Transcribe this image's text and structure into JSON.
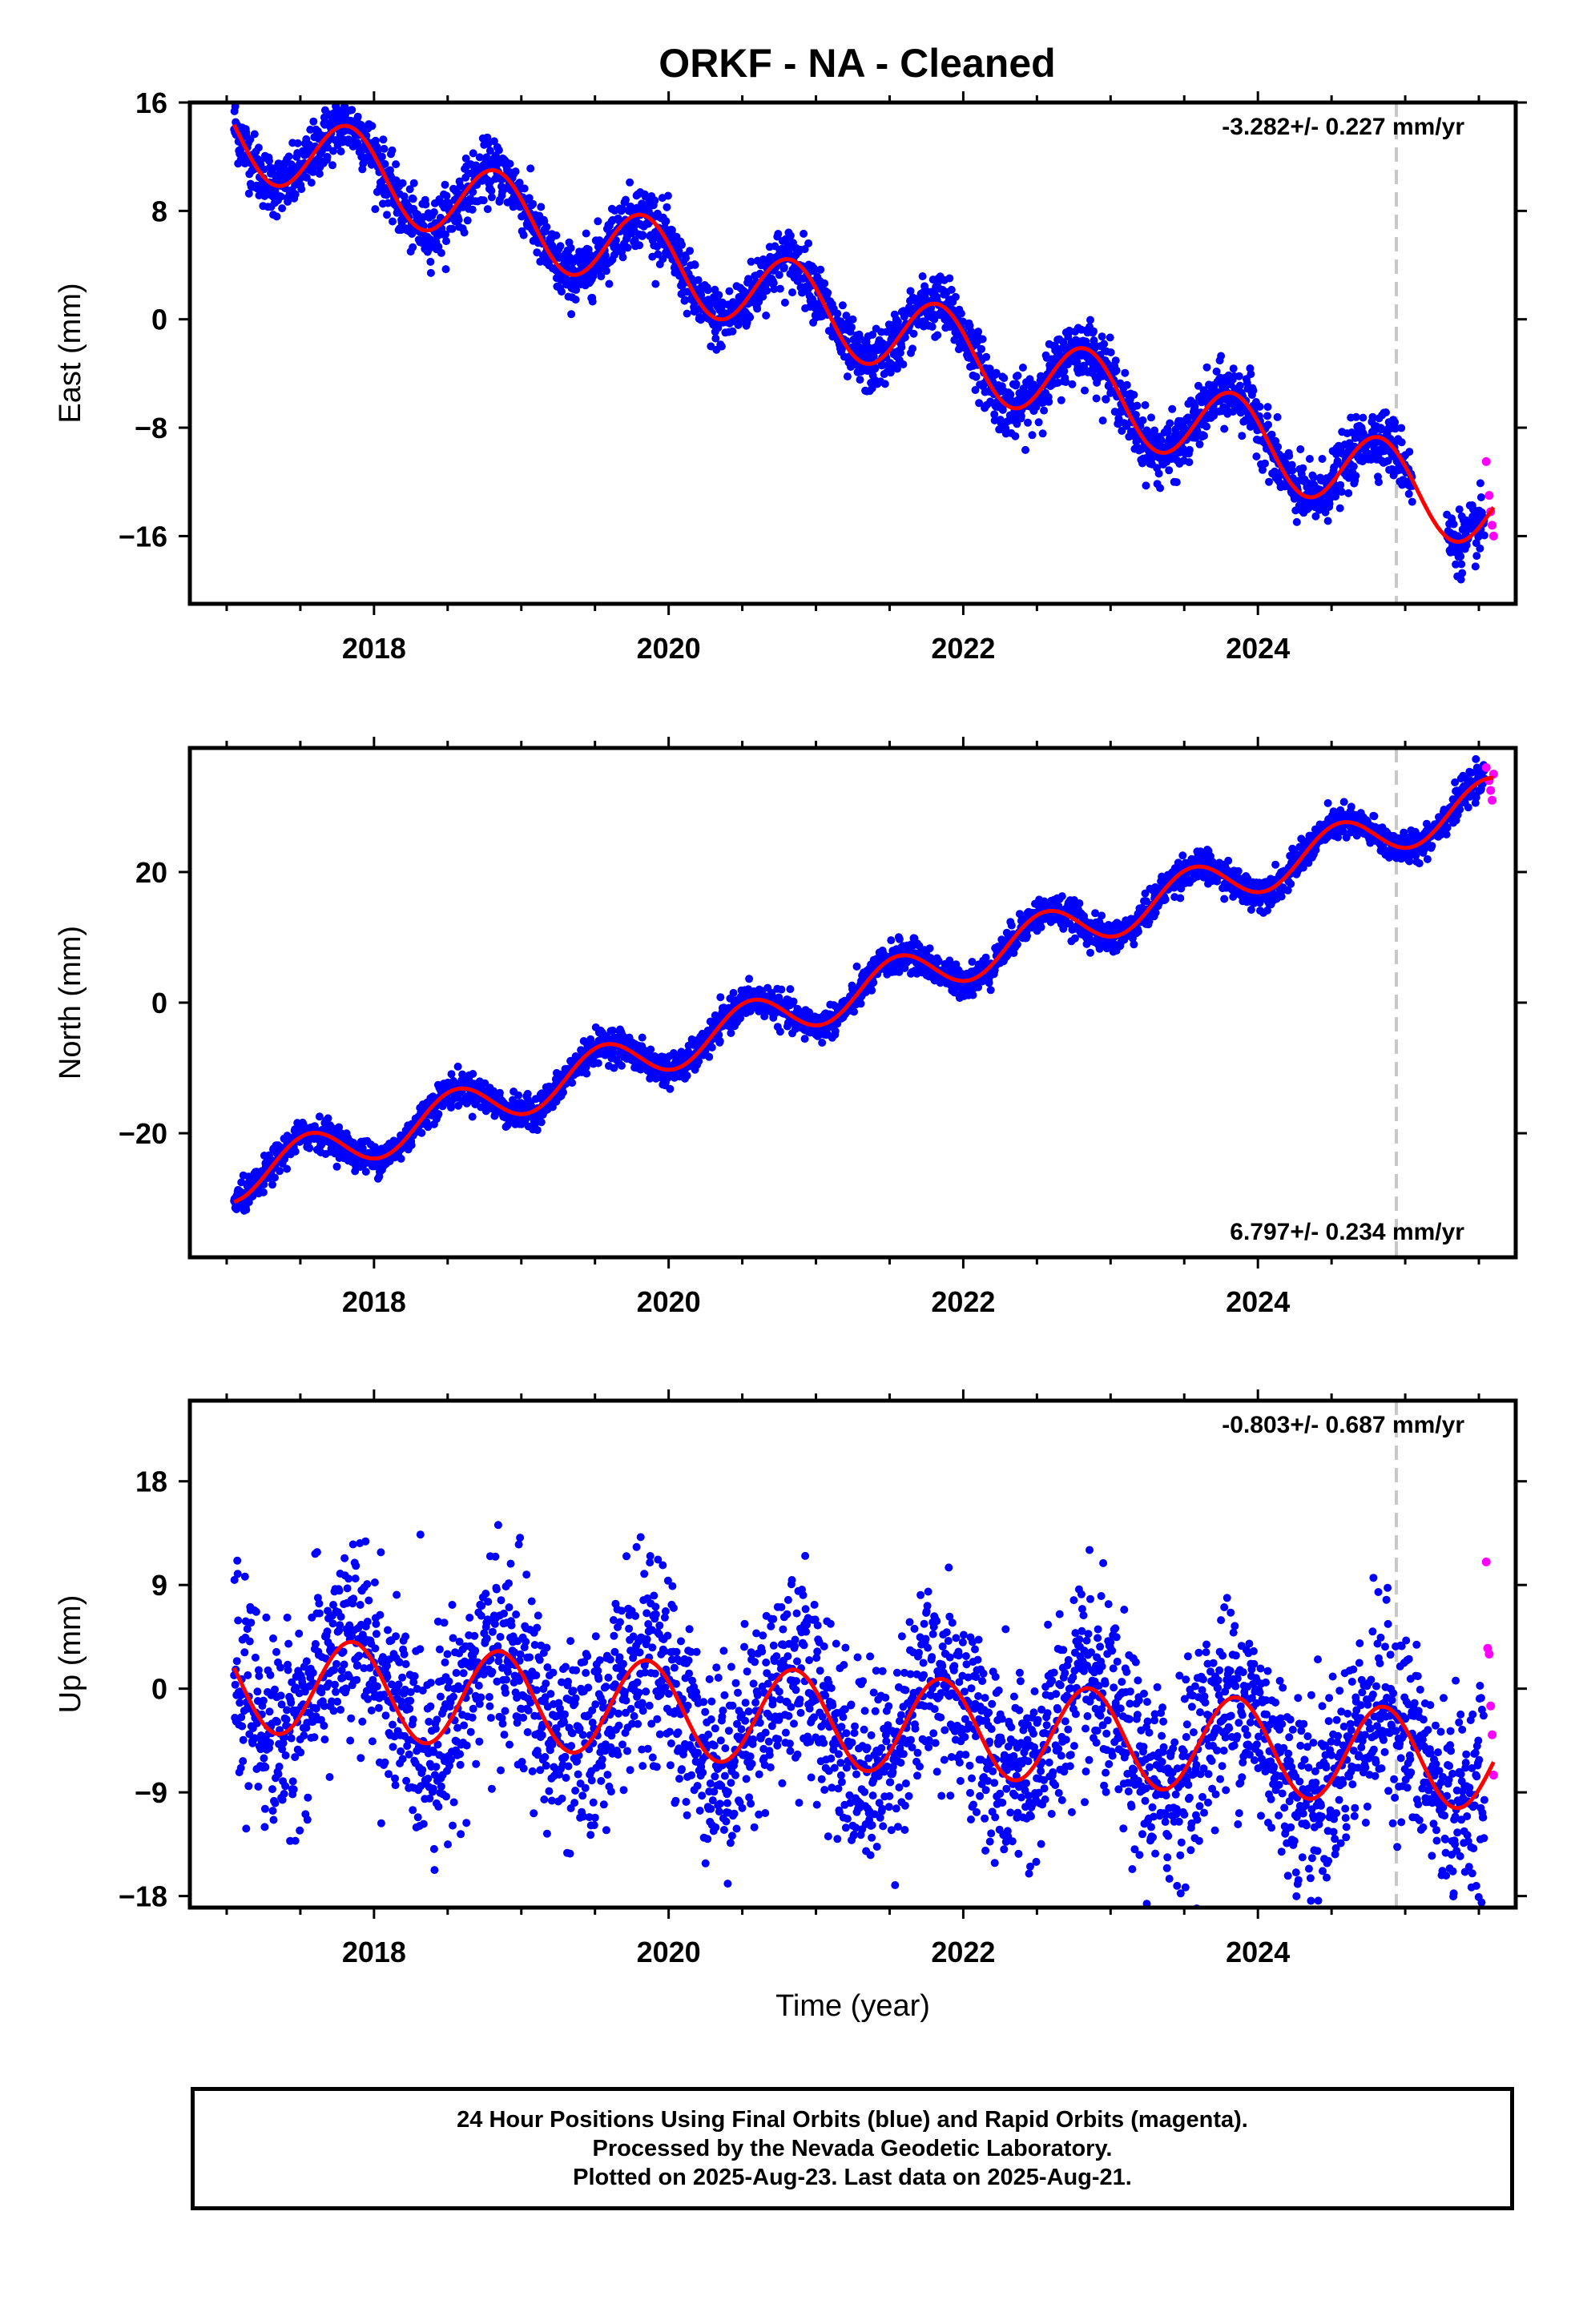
{
  "title": "ORKF  - NA - Cleaned",
  "colors": {
    "final": "#0000ff",
    "rapid": "#ff00ff",
    "model": "#ff0000",
    "rapid_start": "#c8c8c8"
  },
  "chart_data": [
    {
      "type": "scatter",
      "component": "east",
      "ylabel": "East (mm)",
      "xlabel": "",
      "xlim": [
        2016.75,
        2025.75
      ],
      "ylim": [
        -21,
        16
      ],
      "yticks": [
        16,
        8,
        0,
        -8,
        -16
      ],
      "ytick_labels": [
        "16",
        "8",
        "0",
        "−8",
        "−16"
      ],
      "xticks": [
        2018,
        2020,
        2022,
        2024
      ],
      "xtick_labels": [
        "2018",
        "2020",
        "2022",
        "2024"
      ],
      "rapid_start": 2024.94,
      "rate_text": "-3.282+/- 0.227 mm/yr",
      "rate_position": "top-right",
      "model": {
        "t0": 2017.05,
        "offset": 13.8,
        "rate": -3.282,
        "amp": 3.0,
        "peak_phase": 0.83
      },
      "data_range": [
        2017.05,
        2025.6
      ],
      "rapid_values": [
        {
          "t": 2025.55,
          "v": -10.5
        },
        {
          "t": 2025.57,
          "v": -13.0
        },
        {
          "t": 2025.58,
          "v": -14.2
        },
        {
          "t": 2025.59,
          "v": -15.2
        },
        {
          "t": 2025.6,
          "v": -16.0
        }
      ],
      "grid": false,
      "legend": "none"
    },
    {
      "type": "scatter",
      "component": "north",
      "ylabel": "North (mm)",
      "xlabel": "",
      "xlim": [
        2016.75,
        2025.75
      ],
      "ylim": [
        -39,
        39
      ],
      "yticks": [
        20,
        0,
        -20
      ],
      "ytick_labels": [
        "20",
        "0",
        "−20"
      ],
      "xticks": [
        2018,
        2020,
        2022,
        2024
      ],
      "xtick_labels": [
        "2018",
        "2020",
        "2022",
        "2024"
      ],
      "rapid_start": 2024.94,
      "rate_text": "6.797+/- 0.234 mm/yr",
      "rate_position": "bottom-right",
      "model": {
        "t0": 2017.05,
        "offset": -27.0,
        "rate": 6.797,
        "amp": 3.5,
        "peak_phase": 0.55
      },
      "data_range": [
        2017.05,
        2025.6
      ],
      "rapid_values": [
        {
          "t": 2025.55,
          "v": 36.0
        },
        {
          "t": 2025.57,
          "v": 34.0
        },
        {
          "t": 2025.58,
          "v": 32.5
        },
        {
          "t": 2025.59,
          "v": 31.0
        },
        {
          "t": 2025.6,
          "v": 35.0
        }
      ],
      "grid": false,
      "legend": "none"
    },
    {
      "type": "scatter",
      "component": "up",
      "ylabel": "Up (mm)",
      "xlabel": "Time (year)",
      "xlim": [
        2016.75,
        2025.75
      ],
      "ylim": [
        -19,
        25
      ],
      "yticks": [
        18,
        9,
        0,
        -9,
        -18
      ],
      "ytick_labels": [
        "18",
        "9",
        "0",
        "−9",
        "−18"
      ],
      "xticks": [
        2018,
        2020,
        2022,
        2024
      ],
      "xtick_labels": [
        "2018",
        "2020",
        "2022",
        "2024"
      ],
      "rapid_start": 2024.94,
      "rate_text": "-0.803+/- 0.687 mm/yr",
      "rate_position": "top-right",
      "model": {
        "t0": 2017.05,
        "offset": 0.5,
        "rate": -0.803,
        "amp": 4.2,
        "peak_phase": 0.85
      },
      "data_range": [
        2017.05,
        2025.6
      ],
      "rapid_values": [
        {
          "t": 2025.55,
          "v": 11.0
        },
        {
          "t": 2025.56,
          "v": 3.5
        },
        {
          "t": 2025.57,
          "v": 3.0
        },
        {
          "t": 2025.58,
          "v": -1.5
        },
        {
          "t": 2025.59,
          "v": -4.0
        },
        {
          "t": 2025.6,
          "v": -7.5
        }
      ],
      "grid": false,
      "legend": "none"
    }
  ],
  "footer": {
    "line1": "24 Hour Positions Using Final Orbits (blue) and Rapid Orbits (magenta).",
    "line2": "Processed by the Nevada Geodetic Laboratory.",
    "line3": "Plotted on 2025-Aug-23. Last data on 2025-Aug-21."
  }
}
